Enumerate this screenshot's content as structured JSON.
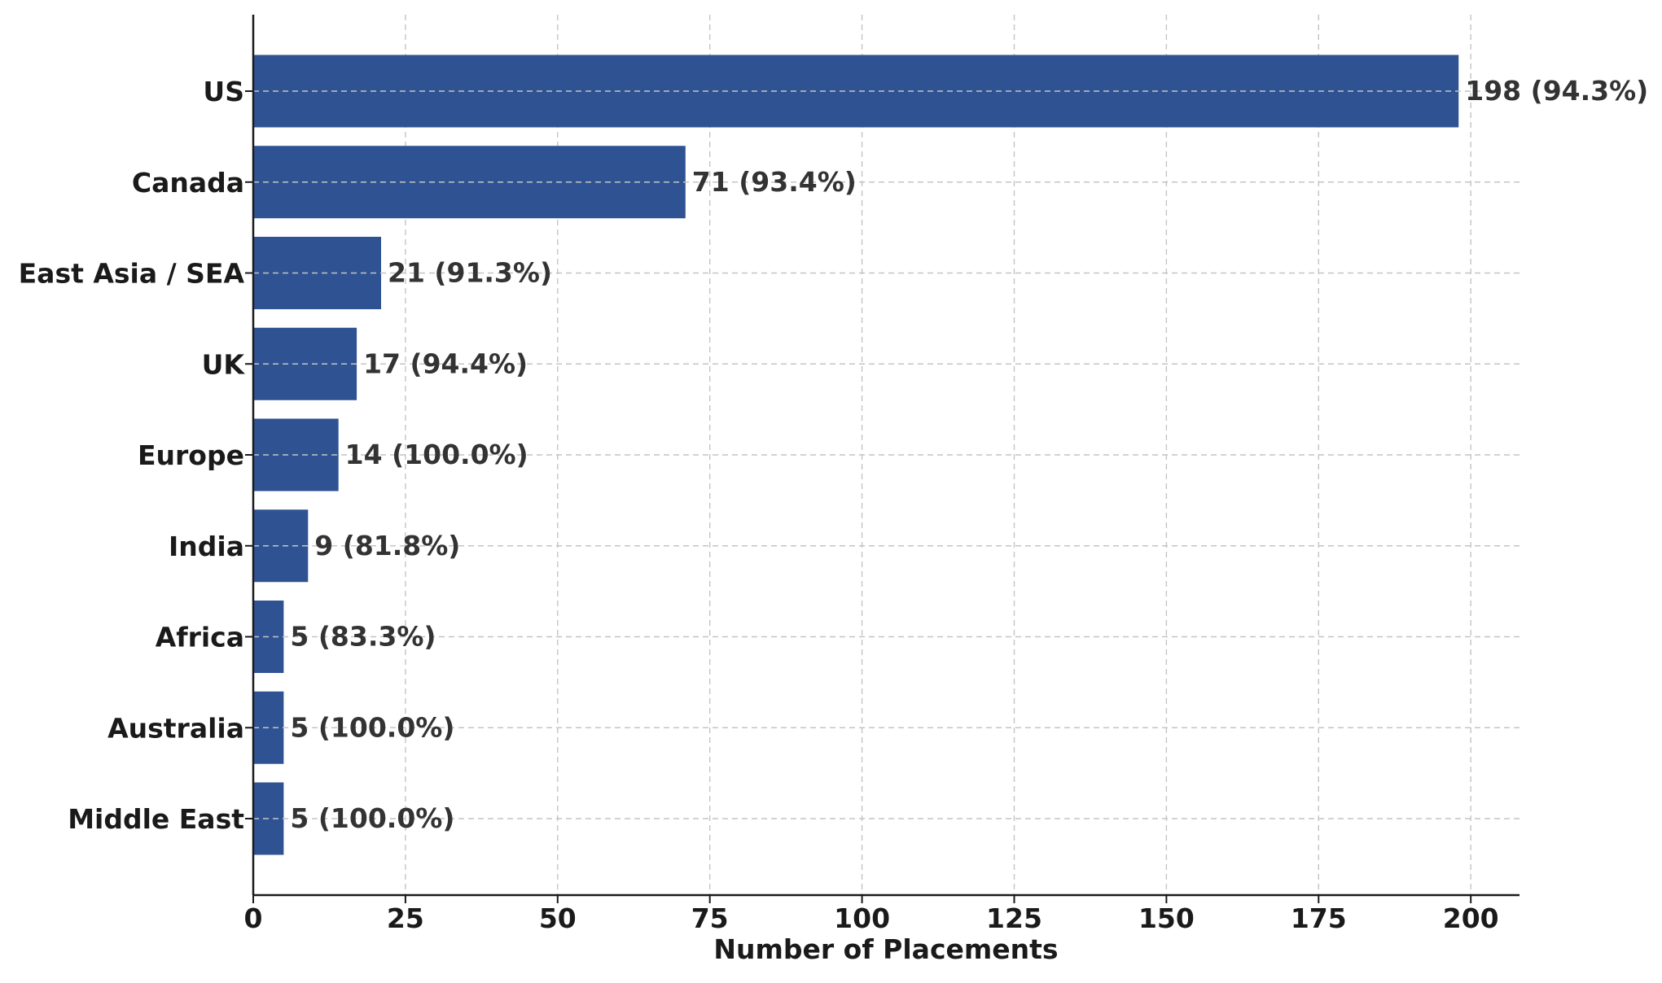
{
  "chart_data": {
    "type": "bar",
    "orientation": "horizontal",
    "categories": [
      "US",
      "Canada",
      "East Asia / SEA",
      "UK",
      "Europe",
      "India",
      "Africa",
      "Australia",
      "Middle East"
    ],
    "values": [
      198,
      71,
      21,
      17,
      14,
      9,
      5,
      5,
      5
    ],
    "data_labels": [
      "198 (94.3%)",
      "71 (93.4%)",
      "21 (91.3%)",
      "17 (94.4%)",
      "14 (100.0%)",
      "9 (81.8%)",
      "5 (83.3%)",
      "5 (100.0%)",
      "5 (100.0%)"
    ],
    "xlabel": "Number of Placements",
    "ylabel": "",
    "title": "",
    "xlim": [
      0,
      208
    ],
    "xticks": [
      "0",
      "25",
      "50",
      "75",
      "100",
      "125",
      "150",
      "175",
      "200"
    ],
    "grid": true,
    "bar_color": "#2f5392",
    "grid_color": "#c4c4c4"
  }
}
